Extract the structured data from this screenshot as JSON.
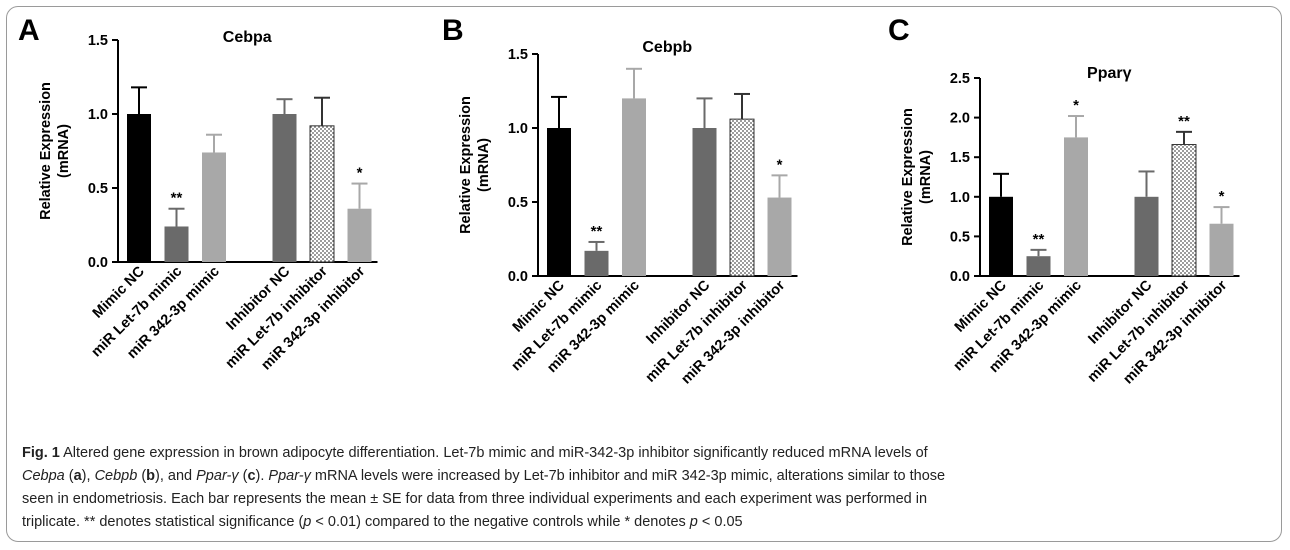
{
  "chart_data": [
    {
      "type": "bar",
      "panel_label": "A",
      "title": "Cebpa",
      "ylabel_line1": "Relative Expression",
      "ylabel_line2": "(mRNA)",
      "ylim": [
        0,
        1.5
      ],
      "yticks": [
        "0.0",
        "0.5",
        "1.0",
        "1.5"
      ],
      "categories": [
        "Mimic NC",
        "miR Let-7b mimic",
        "miR 342-3p mimic",
        "Inhibitor NC",
        "miR Let-7b inhibitor",
        "miR 342-3p inhibitor"
      ],
      "values": [
        1.0,
        0.24,
        0.74,
        1.0,
        0.92,
        0.36
      ],
      "errors": [
        0.18,
        0.12,
        0.12,
        0.1,
        0.19,
        0.17
      ],
      "significance": [
        "",
        "**",
        "",
        "",
        "",
        "*"
      ],
      "colors": [
        "#000000",
        "#6a6a6a",
        "#a8a8a8",
        "#6a6a6a",
        "dots",
        "#a8a8a8"
      ]
    },
    {
      "type": "bar",
      "panel_label": "B",
      "title": "Cebpb",
      "ylabel_line1": "Relative Expression",
      "ylabel_line2": "(mRNA)",
      "ylim": [
        0,
        1.5
      ],
      "yticks": [
        "0.0",
        "0.5",
        "1.0",
        "1.5"
      ],
      "categories": [
        "Mimic NC",
        "miR Let-7b mimic",
        "miR 342-3p mimic",
        "Inhibitor NC",
        "miR Let-7b inhibitor",
        "miR 342-3p inhibitor"
      ],
      "values": [
        1.0,
        0.17,
        1.2,
        1.0,
        1.06,
        0.53
      ],
      "errors": [
        0.21,
        0.06,
        0.2,
        0.2,
        0.17,
        0.15
      ],
      "significance": [
        "",
        "**",
        "",
        "",
        "",
        "*"
      ],
      "colors": [
        "#000000",
        "#6a6a6a",
        "#a8a8a8",
        "#6a6a6a",
        "dots",
        "#a8a8a8"
      ]
    },
    {
      "type": "bar",
      "panel_label": "C",
      "title": "Pparγ",
      "ylabel_line1": "Relative Expression",
      "ylabel_line2": "(mRNA)",
      "ylim": [
        0,
        2.5
      ],
      "yticks": [
        "0.0",
        "0.5",
        "1.0",
        "1.5",
        "2.0",
        "2.5"
      ],
      "categories": [
        "Mimic NC",
        "miR Let-7b mimic",
        "miR 342-3p mimic",
        "Inhibitor NC",
        "miR Let-7b inhibitor",
        "miR 342-3p inhibitor"
      ],
      "values": [
        1.0,
        0.25,
        1.75,
        1.0,
        1.66,
        0.66
      ],
      "errors": [
        0.29,
        0.08,
        0.27,
        0.32,
        0.16,
        0.21
      ],
      "significance": [
        "",
        "**",
        "*",
        "",
        "**",
        "*"
      ],
      "colors": [
        "#000000",
        "#6a6a6a",
        "#a8a8a8",
        "#6a6a6a",
        "dots",
        "#a8a8a8"
      ]
    }
  ],
  "caption": {
    "fig_label": "Fig. 1",
    "title": "Altered gene expression in brown adipocyte differentiation.",
    "line1_rest": "Let-7b mimic and miR-342-3p inhibitor significantly reduced mRNA levels of",
    "cebpa": "Cebpa",
    "a": "a",
    "cebpb": "Cebpb",
    "b": "b",
    "and": "and",
    "pparg": "Ppar-γ",
    "c": "c",
    "line2_rest": "mRNA levels were increased by Let-7b inhibitor and miR 342-3p mimic, alterations similar to those",
    "line3": "seen in endometriosis. Each bar represents the mean ± SE for data from three individual experiments and each experiment was performed in",
    "line4_a": "triplicate. ** denotes statistical significance (",
    "p1": "p",
    "line4_b": " < 0.01) compared to the negative controls while * denotes ",
    "p2": "p",
    "line4_c": " < 0.05"
  }
}
